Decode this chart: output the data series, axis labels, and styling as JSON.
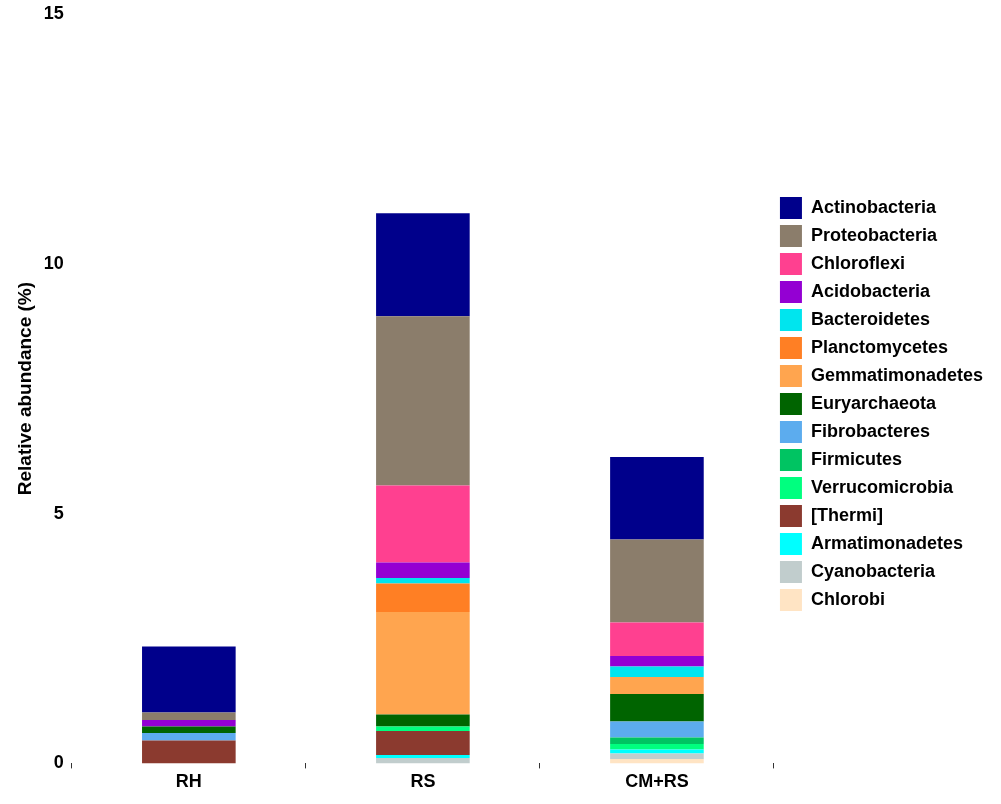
{
  "chart_data": {
    "type": "bar",
    "stacked": true,
    "ylabel": "Relative abundance (%)",
    "categories": [
      "RH",
      "RS",
      "CM+RS"
    ],
    "ylim": [
      0,
      15
    ],
    "yticks": [
      0,
      5,
      10,
      15
    ],
    "grid": false,
    "legend": "right",
    "series": [
      {
        "name": "Chlorobi",
        "color": "#ffe4c4",
        "values": [
          0,
          0,
          0.09
        ]
      },
      {
        "name": "Cyanobacteria",
        "color": "#c1cdcd",
        "values": [
          0,
          0.11,
          0.11
        ]
      },
      {
        "name": "Armatimonadetes",
        "color": "#00ffff",
        "values": [
          0,
          0.06,
          0.08
        ]
      },
      {
        "name": "[Thermi]",
        "color": "#8b3a2f",
        "values": [
          0.46,
          0.48,
          0
        ]
      },
      {
        "name": "Verrucomicrobia",
        "color": "#00ff7f",
        "values": [
          0,
          0.09,
          0.11
        ]
      },
      {
        "name": "Firmicutes",
        "color": "#00c462",
        "values": [
          0,
          0,
          0.13
        ]
      },
      {
        "name": "Fibrobacteres",
        "color": "#5cacee",
        "values": [
          0.15,
          0,
          0.32
        ]
      },
      {
        "name": "Euryarchaeota",
        "color": "#006400",
        "values": [
          0.13,
          0.24,
          0.55
        ]
      },
      {
        "name": "Gemmatimonadetes",
        "color": "#ffa54f",
        "values": [
          0,
          2.05,
          0.34
        ]
      },
      {
        "name": "Planctomycetes",
        "color": "#ff7f24",
        "values": [
          0,
          0.57,
          0
        ]
      },
      {
        "name": "Bacteroidetes",
        "color": "#00e5ee",
        "values": [
          0,
          0.11,
          0.21
        ]
      },
      {
        "name": "Acidobacteria",
        "color": "#9400d3",
        "values": [
          0.13,
          0.31,
          0.21
        ]
      },
      {
        "name": "Chloroflexi",
        "color": "#ff4090",
        "values": [
          0,
          1.54,
          0.67
        ]
      },
      {
        "name": "Proteobacteria",
        "color": "#8b7d6b",
        "values": [
          0.15,
          3.39,
          1.66
        ]
      },
      {
        "name": "Actinobacteria",
        "color": "#00008b",
        "values": [
          1.32,
          2.06,
          1.65
        ]
      }
    ]
  }
}
